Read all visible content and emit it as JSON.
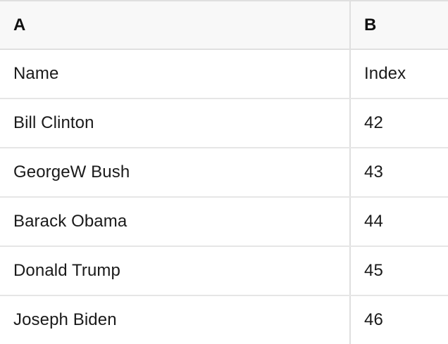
{
  "table": {
    "column_headers": [
      {
        "label": "A"
      },
      {
        "label": "B"
      }
    ],
    "field_row": {
      "name": "Name",
      "index": "Index"
    },
    "rows": [
      {
        "name": "Bill Clinton",
        "index": "42"
      },
      {
        "name": "GeorgeW Bush",
        "index": "43"
      },
      {
        "name": "Barack Obama",
        "index": "44"
      },
      {
        "name": "Donald Trump",
        "index": "45"
      },
      {
        "name": "Joseph Biden",
        "index": "46"
      }
    ]
  },
  "colors": {
    "header_bg": "#f8f8f8",
    "row_bg": "#ffffff",
    "border": "#e0e0e0",
    "text": "#1a1a1a"
  }
}
